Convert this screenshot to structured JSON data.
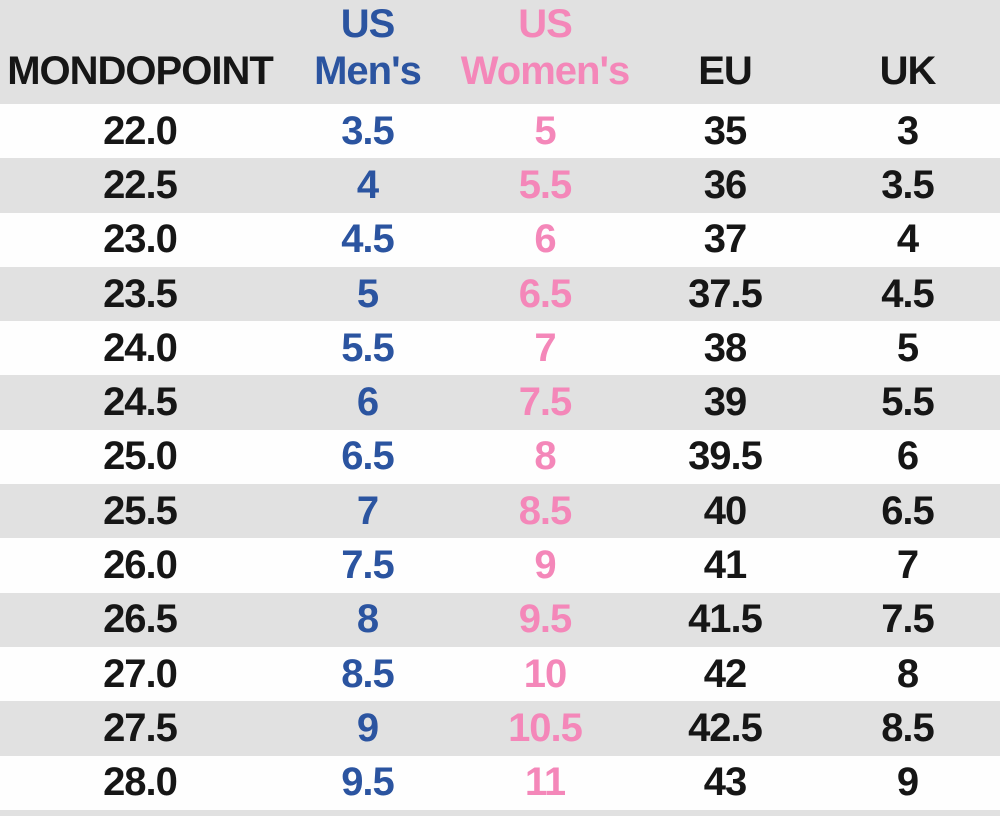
{
  "colors": {
    "stripe_gray": "#e1e1e1",
    "row_white": "#fefefe",
    "text_black": "#161616",
    "us_mens_blue": "#2b54a0",
    "us_womens_pink": "#f487b9"
  },
  "table": {
    "columns": [
      {
        "id": "mondopoint",
        "line1": "",
        "line2": "MONDOPOINT",
        "color": "#161616"
      },
      {
        "id": "us-mens",
        "line1": "US",
        "line2": "Men's",
        "color": "#2b54a0"
      },
      {
        "id": "us-womens",
        "line1": "US",
        "line2": "Women's",
        "color": "#f487b9"
      },
      {
        "id": "eu",
        "line1": "",
        "line2": "EU",
        "color": "#161616"
      },
      {
        "id": "uk",
        "line1": "",
        "line2": "UK",
        "color": "#161616"
      }
    ],
    "rows": [
      [
        "22.0",
        "3.5",
        "5",
        "35",
        "3"
      ],
      [
        "22.5",
        "4",
        "5.5",
        "36",
        "3.5"
      ],
      [
        "23.0",
        "4.5",
        "6",
        "37",
        "4"
      ],
      [
        "23.5",
        "5",
        "6.5",
        "37.5",
        "4.5"
      ],
      [
        "24.0",
        "5.5",
        "7",
        "38",
        "5"
      ],
      [
        "24.5",
        "6",
        "7.5",
        "39",
        "5.5"
      ],
      [
        "25.0",
        "6.5",
        "8",
        "39.5",
        "6"
      ],
      [
        "25.5",
        "7",
        "8.5",
        "40",
        "6.5"
      ],
      [
        "26.0",
        "7.5",
        "9",
        "41",
        "7"
      ],
      [
        "26.5",
        "8",
        "9.5",
        "41.5",
        "7.5"
      ],
      [
        "27.0",
        "8.5",
        "10",
        "42",
        "8"
      ],
      [
        "27.5",
        "9",
        "10.5",
        "42.5",
        "8.5"
      ],
      [
        "28.0",
        "9.5",
        "11",
        "43",
        "9"
      ]
    ]
  },
  "chart_data": {
    "type": "table",
    "columns": [
      "MONDOPOINT",
      "US Men's",
      "US Women's",
      "EU",
      "UK"
    ],
    "rows": [
      [
        "22.0",
        "3.5",
        "5",
        "35",
        "3"
      ],
      [
        "22.5",
        "4",
        "5.5",
        "36",
        "3.5"
      ],
      [
        "23.0",
        "4.5",
        "6",
        "37",
        "4"
      ],
      [
        "23.5",
        "5",
        "6.5",
        "37.5",
        "4.5"
      ],
      [
        "24.0",
        "5.5",
        "7",
        "38",
        "5"
      ],
      [
        "24.5",
        "6",
        "7.5",
        "39",
        "5.5"
      ],
      [
        "25.0",
        "6.5",
        "8",
        "39.5",
        "6"
      ],
      [
        "25.5",
        "7",
        "8.5",
        "40",
        "6.5"
      ],
      [
        "26.0",
        "7.5",
        "9",
        "41",
        "7"
      ],
      [
        "26.5",
        "8",
        "9.5",
        "41.5",
        "7.5"
      ],
      [
        "27.0",
        "8.5",
        "10",
        "42",
        "8"
      ],
      [
        "27.5",
        "9",
        "10.5",
        "42.5",
        "8.5"
      ],
      [
        "28.0",
        "9.5",
        "11",
        "43",
        "9"
      ]
    ],
    "layout": {
      "striped_rows": true,
      "stripe_color": "#e1e1e1",
      "column_text_colors": [
        "#161616",
        "#2b54a0",
        "#f487b9",
        "#161616",
        "#161616"
      ]
    }
  }
}
